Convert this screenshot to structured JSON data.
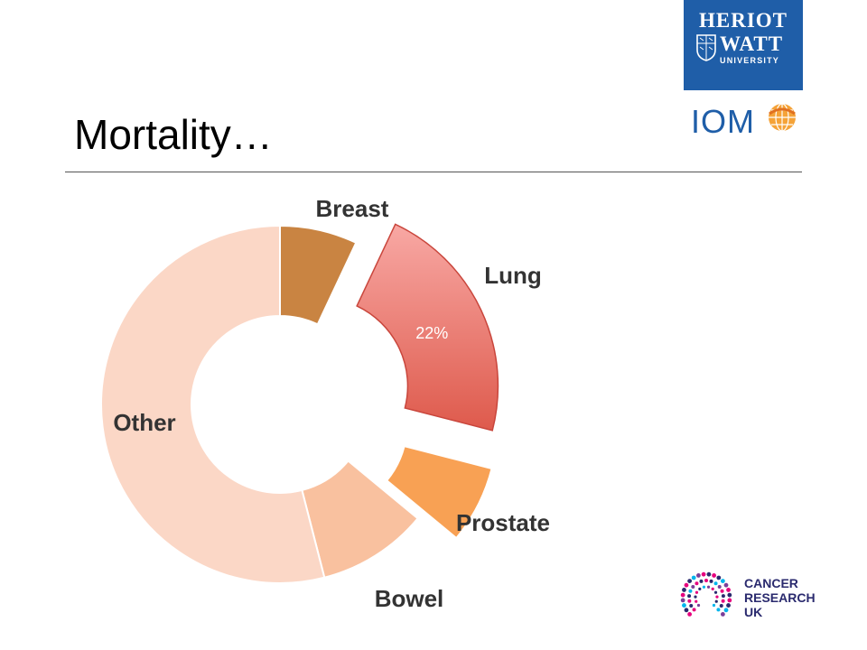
{
  "slide": {
    "title": "Mortality…"
  },
  "logos": {
    "heriot_watt": {
      "line1": "HERIOT",
      "line2": "WATT",
      "line3": "UNIVERSITY",
      "color": "#1f5ea8"
    },
    "iom": {
      "text": "IOM",
      "color": "#1f5ea8"
    },
    "cruk": {
      "line1": "CANCER",
      "line2": "RESEARCH",
      "line3": "UK",
      "color": "#2a2a6e"
    }
  },
  "chart_data": {
    "type": "pie",
    "donut": true,
    "start_category": "Breast",
    "categories": [
      "Breast",
      "Lung",
      "Prostate",
      "Bowel",
      "Other"
    ],
    "values": [
      7,
      22,
      7,
      10,
      54
    ],
    "exploded": [
      "Lung",
      "Prostate"
    ],
    "data_labels": {
      "Lung": "22%"
    },
    "colors": [
      "#c98442",
      "#e5665a",
      "#f8a154",
      "#f9c19f",
      "#fbd7c6"
    ]
  }
}
